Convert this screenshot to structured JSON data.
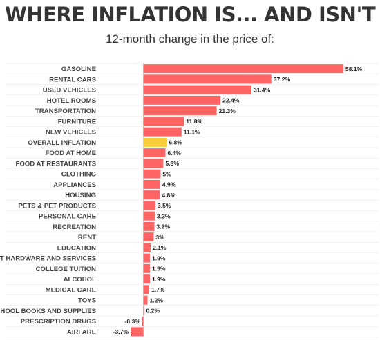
{
  "title": "WHERE INFLATION IS... AND ISN'T",
  "subtitle": "12-month change in the price of:",
  "colors": {
    "bar": "#ff6464",
    "highlight": "#f8cf3b",
    "grid": "#e6e6e6",
    "axis": "#cccccc"
  },
  "chart_data": {
    "type": "bar",
    "orientation": "horizontal",
    "categories": [
      "GASOLINE",
      "RENTAL CARS",
      "USED VEHICLES",
      "HOTEL ROOMS",
      "TRANSPORTATION",
      "FURNITURE",
      "NEW VEHICLES",
      "OVERALL INFLATION",
      "FOOD AT HOME",
      "FOOD AT RESTAURANTS",
      "CLOTHING",
      "APPLIANCES",
      "HOUSING",
      "PETS & PET PRODUCTS",
      "PERSONAL CARE",
      "RECREATION",
      "RENT",
      "EDUCATION",
      "IT HARDWARE AND SERVICES",
      "COLLEGE TUITION",
      "ALCOHOL",
      "MEDICAL CARE",
      "TOYS",
      "SCHOOL BOOKS AND SUPPLIES",
      "PRESCRIPTION DRUGS",
      "AIRFARE"
    ],
    "values": [
      58.1,
      37.2,
      31.4,
      22.4,
      21.3,
      11.8,
      11.1,
      6.8,
      6.4,
      5.8,
      5,
      4.9,
      4.8,
      3.5,
      3.3,
      3.2,
      3,
      2.1,
      1.9,
      1.9,
      1.9,
      1.7,
      1.2,
      0.2,
      -0.3,
      -3.7
    ],
    "value_labels": [
      "58.1%",
      "37.2%",
      "31.4%",
      "22.4%",
      "21.3%",
      "11.8%",
      "11.1%",
      "6.8%",
      "6.4%",
      "5.8%",
      "5%",
      "4.9%",
      "4.8%",
      "3.5%",
      "3.3%",
      "3.2%",
      "3%",
      "2.1%",
      "1.9%",
      "1.9%",
      "1.9%",
      "1.7%",
      "1.2%",
      "0.2%",
      "-0.3%",
      "-3.7%"
    ],
    "highlight": "OVERALL INFLATION",
    "xlim": [
      -3.7,
      58.1
    ],
    "grid": true
  }
}
